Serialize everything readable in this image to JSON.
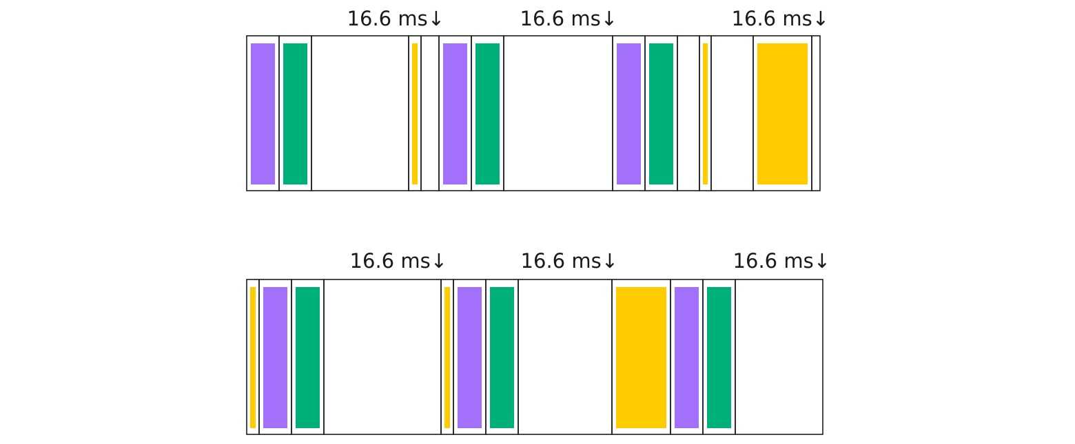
{
  "colors": {
    "purple": "#a370fc",
    "green": "#00b07b",
    "yellow": "#ffcc00",
    "border": "#1a1a1a",
    "background": "#ffffff"
  },
  "timelines": [
    {
      "name": "timeline-top",
      "frame_markers": [
        {
          "label": "16.6 ms↓"
        },
        {
          "label": "16.6 ms↓"
        },
        {
          "label": "16.6 ms↓"
        }
      ],
      "segments": [
        {
          "color": "purple",
          "width": 47
        },
        {
          "color": "green",
          "width": 47
        },
        {
          "color": "none",
          "width": 141
        },
        {
          "color": "yellow",
          "width": 18,
          "bar": "thin"
        },
        {
          "color": "none",
          "width": 26
        },
        {
          "color": "purple",
          "width": 47
        },
        {
          "color": "green",
          "width": 47
        },
        {
          "color": "none",
          "width": 158
        },
        {
          "color": "purple",
          "width": 47
        },
        {
          "color": "green",
          "width": 47
        },
        {
          "color": "none",
          "width": 32
        },
        {
          "color": "yellow",
          "width": 17,
          "bar": "thin"
        },
        {
          "color": "none",
          "width": 61
        },
        {
          "color": "yellow",
          "width": 85
        },
        {
          "color": "none",
          "width": 12
        }
      ]
    },
    {
      "name": "timeline-bottom",
      "frame_markers": [
        {
          "label": "16.6 ms↓"
        },
        {
          "label": "16.6 ms↓"
        },
        {
          "label": "16.6 ms↓"
        }
      ],
      "segments": [
        {
          "color": "yellow",
          "width": 18,
          "bar": "thin"
        },
        {
          "color": "purple",
          "width": 47
        },
        {
          "color": "green",
          "width": 47
        },
        {
          "color": "none",
          "width": 170
        },
        {
          "color": "yellow",
          "width": 18,
          "bar": "thin"
        },
        {
          "color": "purple",
          "width": 47
        },
        {
          "color": "green",
          "width": 47
        },
        {
          "color": "none",
          "width": 136
        },
        {
          "color": "yellow",
          "width": 85
        },
        {
          "color": "purple",
          "width": 47
        },
        {
          "color": "green",
          "width": 47
        },
        {
          "color": "none",
          "width": 127
        }
      ]
    }
  ]
}
